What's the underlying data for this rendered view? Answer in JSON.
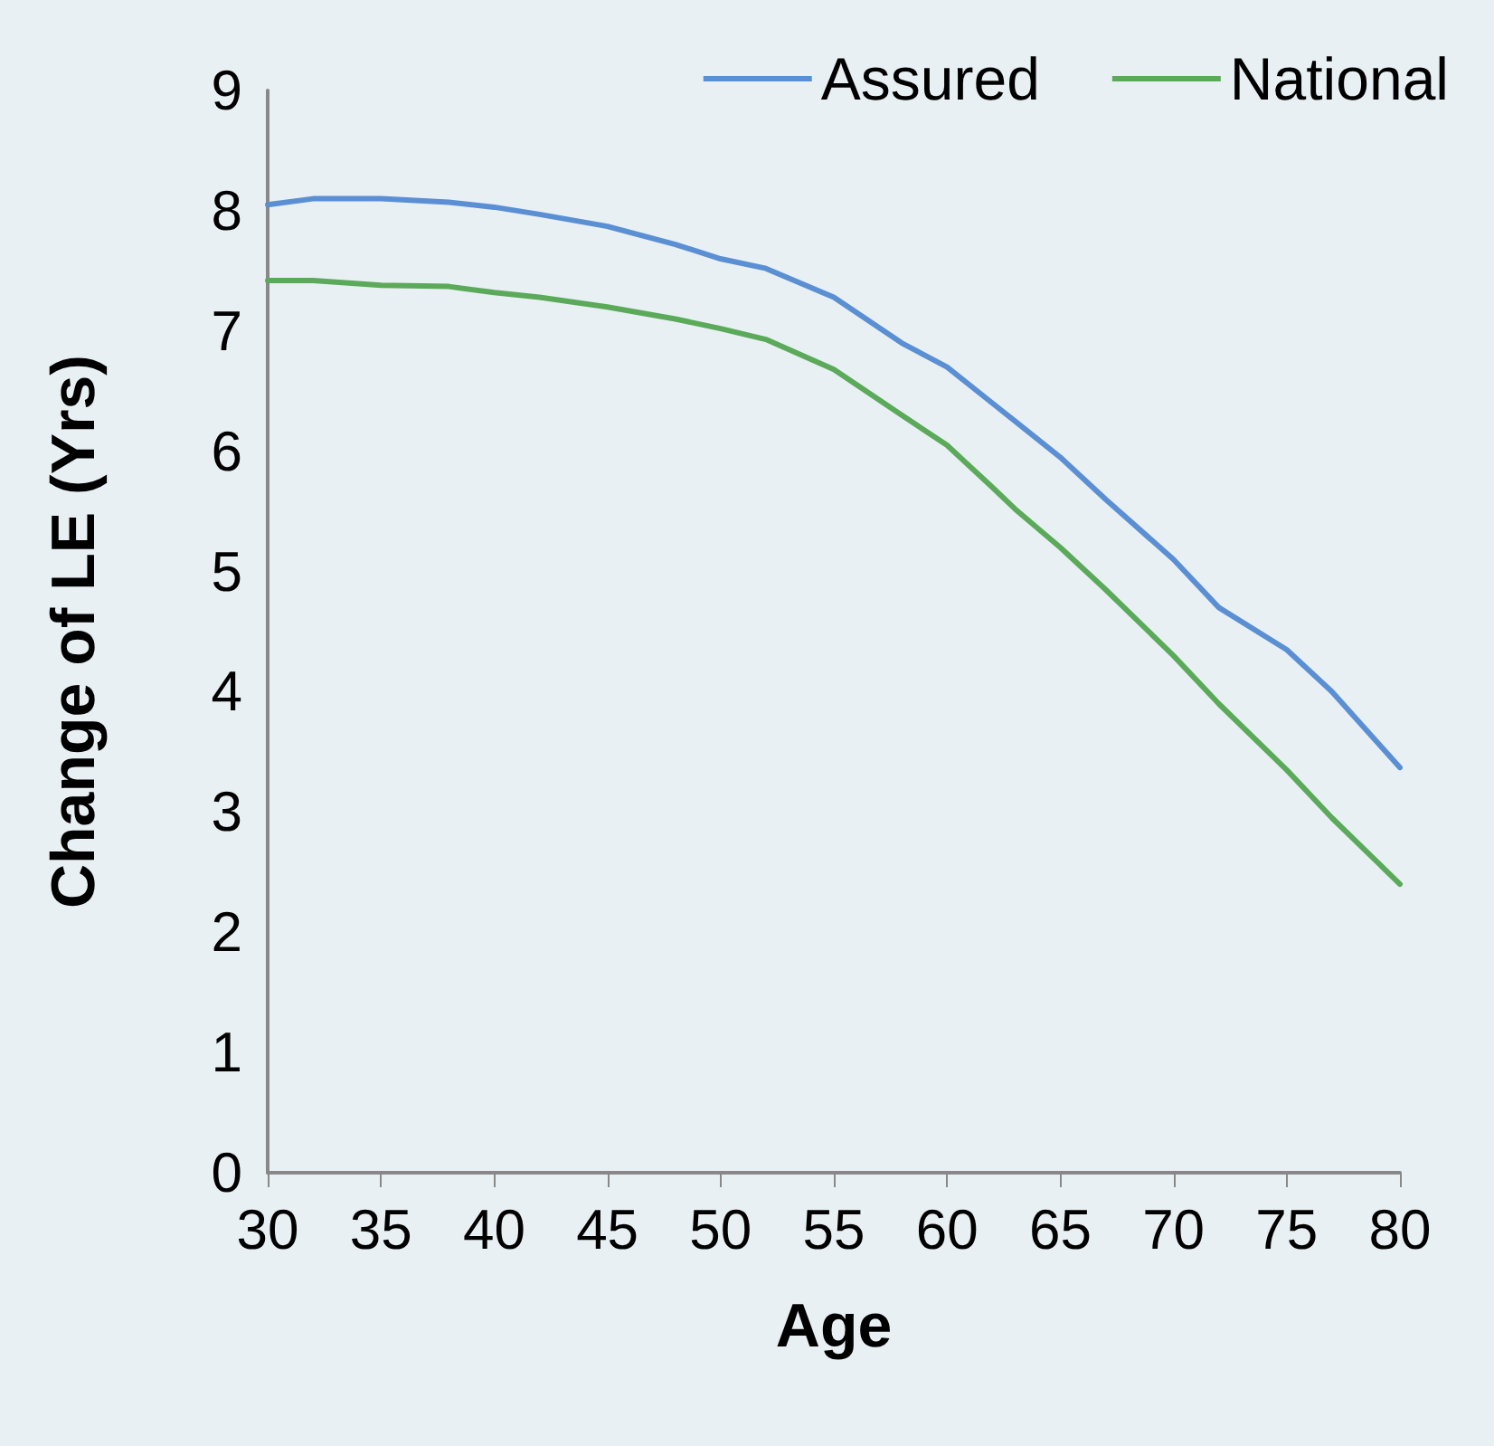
{
  "chart_data": {
    "type": "line",
    "xlabel": "Age",
    "ylabel": "Change of LE (Yrs)",
    "x": [
      30,
      32,
      35,
      38,
      40,
      42,
      45,
      48,
      50,
      52,
      55,
      58,
      60,
      62,
      63,
      65,
      67,
      70,
      72,
      75,
      77,
      80
    ],
    "series": [
      {
        "name": "Assured",
        "color": "#5b8fd4",
        "values": [
          8.05,
          8.1,
          8.1,
          8.07,
          8.03,
          7.97,
          7.87,
          7.72,
          7.6,
          7.52,
          7.28,
          6.9,
          6.7,
          6.4,
          6.25,
          5.95,
          5.6,
          5.1,
          4.7,
          4.35,
          4.0,
          3.37
        ]
      },
      {
        "name": "National",
        "color": "#5aaa5a",
        "values": [
          7.42,
          7.42,
          7.38,
          7.37,
          7.32,
          7.28,
          7.2,
          7.1,
          7.02,
          6.93,
          6.68,
          6.3,
          6.05,
          5.7,
          5.52,
          5.2,
          4.85,
          4.3,
          3.9,
          3.35,
          2.95,
          2.4
        ]
      }
    ],
    "xlim": [
      30,
      80
    ],
    "xticks": [
      30,
      35,
      40,
      45,
      50,
      55,
      60,
      65,
      70,
      75,
      80
    ],
    "ylim": [
      0,
      9
    ],
    "yticks": [
      0,
      1,
      2,
      3,
      4,
      5,
      6,
      7,
      8,
      9
    ],
    "grid": false,
    "legend": "top right",
    "marker": "none",
    "line_style": "solid"
  }
}
